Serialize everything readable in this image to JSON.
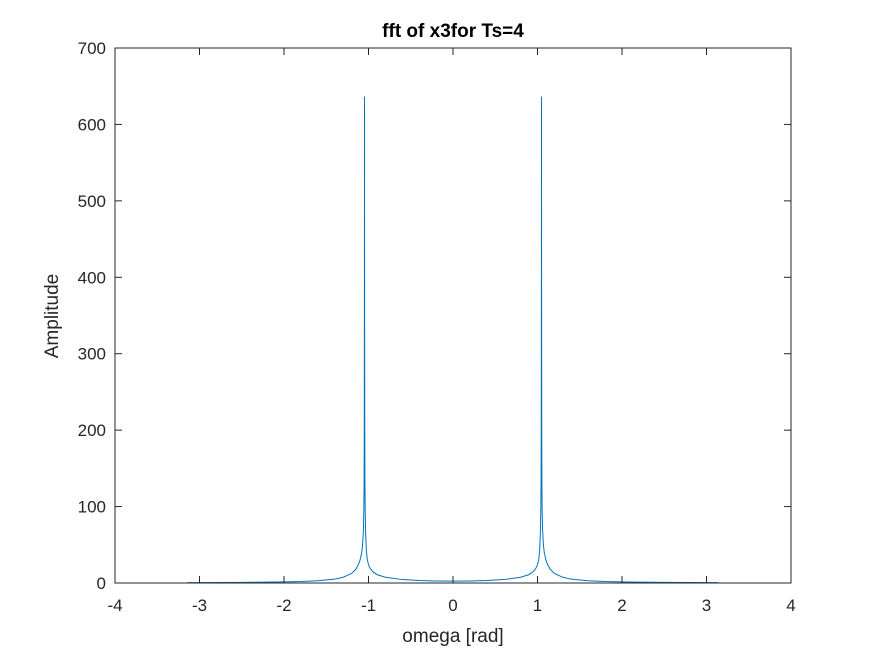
{
  "chart_data": {
    "type": "line",
    "title": "fft of x3for Ts=4",
    "xlabel": "omega [rad]",
    "ylabel": "Amplitude",
    "xlim": [
      -4,
      4
    ],
    "ylim": [
      0,
      700
    ],
    "xticks": [
      -4,
      -3,
      -2,
      -1,
      0,
      1,
      2,
      3,
      4
    ],
    "yticks": [
      0,
      100,
      200,
      300,
      400,
      500,
      600,
      700
    ],
    "xtick_labels": [
      "-4",
      "-3",
      "-2",
      "-1",
      "0",
      "1",
      "2",
      "3",
      "4"
    ],
    "ytick_labels": [
      "0",
      "100",
      "200",
      "300",
      "400",
      "500",
      "600",
      "700"
    ],
    "grid": false,
    "box": true,
    "series": [
      {
        "color": "#0072BD",
        "x": [
          -3.1416,
          -2.8,
          -2.5,
          -2.2,
          -2.0,
          -1.8,
          -1.6,
          -1.4,
          -1.3,
          -1.2,
          -1.15,
          -1.12,
          -1.1,
          -1.08,
          -1.07,
          -1.06,
          -1.055,
          -1.052,
          -1.05,
          -1.0485,
          -1.0472,
          -1.0459,
          -1.044,
          -1.042,
          -1.039,
          -1.034,
          -1.025,
          -1.015,
          -1.0,
          -0.98,
          -0.95,
          -0.9,
          -0.8,
          -0.6,
          -0.4,
          -0.2,
          0.0,
          0.2,
          0.4,
          0.6,
          0.8,
          0.9,
          0.95,
          0.98,
          1.0,
          1.015,
          1.025,
          1.034,
          1.039,
          1.042,
          1.044,
          1.0459,
          1.0472,
          1.0485,
          1.05,
          1.052,
          1.055,
          1.06,
          1.07,
          1.08,
          1.1,
          1.12,
          1.15,
          1.2,
          1.3,
          1.4,
          1.6,
          1.8,
          2.0,
          2.2,
          2.5,
          2.8,
          3.1416
        ],
        "y": [
          0.5,
          0.6,
          0.8,
          1.1,
          1.4,
          1.9,
          2.9,
          5.0,
          7.5,
          12.5,
          18,
          24,
          30,
          40,
          50,
          70,
          95,
          130,
          200,
          350,
          636,
          350,
          200,
          130,
          95,
          65,
          42,
          31,
          24,
          19,
          15,
          11,
          7.5,
          4.5,
          3.2,
          2.6,
          2.4,
          2.6,
          3.2,
          4.5,
          7.5,
          11,
          15,
          19,
          24,
          31,
          42,
          65,
          95,
          130,
          200,
          350,
          636,
          350,
          200,
          130,
          95,
          70,
          50,
          40,
          30,
          24,
          18,
          12.5,
          7.5,
          5.0,
          2.9,
          1.9,
          1.4,
          1.1,
          0.8,
          0.6,
          0.5
        ]
      }
    ]
  }
}
